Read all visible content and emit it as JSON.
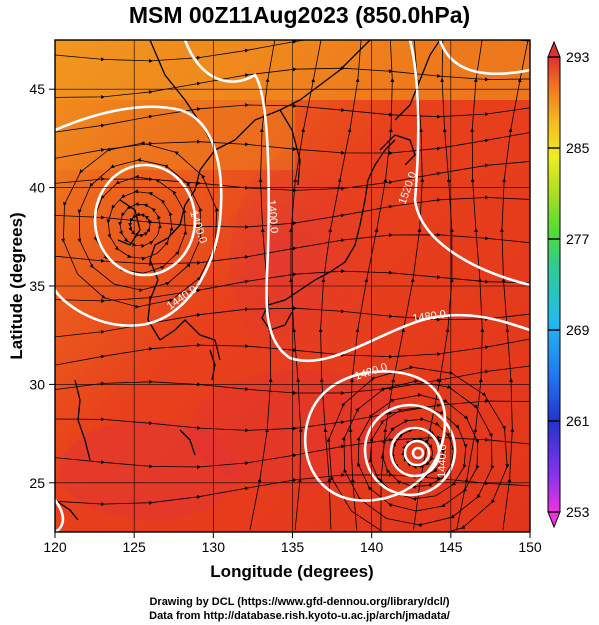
{
  "title": "MSM 00Z11Aug2023 (850.0hPa)",
  "axes": {
    "xlabel": "Longitude (degrees)",
    "ylabel": "Latitude  (degrees)",
    "xticks": [
      "120",
      "125",
      "130",
      "135",
      "140",
      "145",
      "150"
    ],
    "yticks": [
      "25",
      "30",
      "35",
      "40",
      "45"
    ],
    "xlim": [
      120,
      150
    ],
    "ylim": [
      22.5,
      47.5
    ]
  },
  "colorbar": {
    "ticks": [
      "293",
      "285",
      "277",
      "269",
      "261",
      "253"
    ],
    "range": [
      253,
      293
    ],
    "colors": [
      "#ee33dd",
      "#7733ee",
      "#2233cc",
      "#2277ee",
      "#22bbee",
      "#33cc88",
      "#55dd33",
      "#aadd22",
      "#eeee22",
      "#f5b81f",
      "#f07a20",
      "#e83c1e",
      "#e03030"
    ]
  },
  "contours": {
    "labels": [
      "1400.0",
      "1400.0",
      "1440.0",
      "1480.0",
      "1480.0",
      "1520.0",
      "1440.0",
      "1480.0"
    ]
  },
  "credits": {
    "line1": "Drawing by DCL (https://www.gfd-dennou.org/library/dcl/)",
    "line2": "Data from http://database.rish.kyoto-u.ac.jp/arch/jmadata/"
  }
}
